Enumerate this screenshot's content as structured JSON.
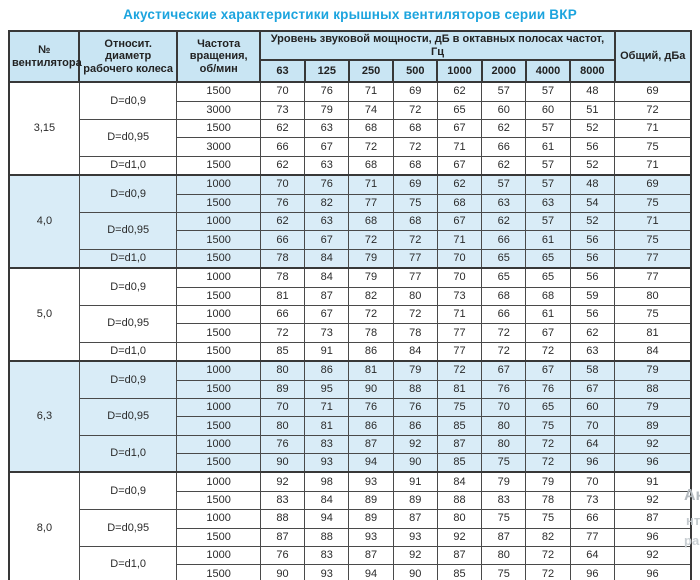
{
  "title": "Акустические характеристики крышных вентиляторов серии ВКР",
  "colors": {
    "title_blue": "#1ca4de",
    "header_bg": "#c9e5f3",
    "shaded_row_bg": "#d9ecf7",
    "border_dark": "#383838",
    "text": "#2a2a2a"
  },
  "watermark": {
    "line1": "Ак",
    "line2": "нт",
    "line3": "ра"
  },
  "table": {
    "headers": {
      "fan": "№ вентилятора",
      "diameter": "Относит. диаметр рабочего колеса",
      "rpm": "Частота вращения, об/мин",
      "spl_group": "Уровень звуковой мощности, дБ в октавных полосах частот, Гц",
      "frequencies": [
        "63",
        "125",
        "250",
        "500",
        "1000",
        "2000",
        "4000",
        "8000"
      ],
      "total": "Общий, дБа"
    },
    "sections": [
      {
        "fan": "3,15",
        "shaded": false,
        "groups": [
          {
            "diameter": "D=d0,9",
            "rows": [
              {
                "rpm": "1500",
                "levels": [
                  70,
                  76,
                  71,
                  69,
                  62,
                  57,
                  57,
                  48
                ],
                "total": 69
              },
              {
                "rpm": "3000",
                "levels": [
                  73,
                  79,
                  74,
                  72,
                  65,
                  60,
                  60,
                  51
                ],
                "total": 72
              }
            ]
          },
          {
            "diameter": "D=d0,95",
            "rows": [
              {
                "rpm": "1500",
                "levels": [
                  62,
                  63,
                  68,
                  68,
                  67,
                  62,
                  57,
                  52
                ],
                "total": 71
              },
              {
                "rpm": "3000",
                "levels": [
                  66,
                  67,
                  72,
                  72,
                  71,
                  66,
                  61,
                  56
                ],
                "total": 75
              }
            ]
          },
          {
            "diameter": "D=d1,0",
            "rows": [
              {
                "rpm": "1500",
                "levels": [
                  62,
                  63,
                  68,
                  68,
                  67,
                  62,
                  57,
                  52
                ],
                "total": 71
              }
            ]
          }
        ]
      },
      {
        "fan": "4,0",
        "shaded": true,
        "groups": [
          {
            "diameter": "D=d0,9",
            "rows": [
              {
                "rpm": "1000",
                "levels": [
                  70,
                  76,
                  71,
                  69,
                  62,
                  57,
                  57,
                  48
                ],
                "total": 69
              },
              {
                "rpm": "1500",
                "levels": [
                  76,
                  82,
                  77,
                  75,
                  68,
                  63,
                  63,
                  54
                ],
                "total": 75
              }
            ]
          },
          {
            "diameter": "D=d0,95",
            "rows": [
              {
                "rpm": "1000",
                "levels": [
                  62,
                  63,
                  68,
                  68,
                  67,
                  62,
                  57,
                  52
                ],
                "total": 71
              },
              {
                "rpm": "1500",
                "levels": [
                  66,
                  67,
                  72,
                  72,
                  71,
                  66,
                  61,
                  56
                ],
                "total": 75
              }
            ]
          },
          {
            "diameter": "D=d1,0",
            "rows": [
              {
                "rpm": "1500",
                "levels": [
                  78,
                  84,
                  79,
                  77,
                  70,
                  65,
                  65,
                  56
                ],
                "total": 77
              }
            ]
          }
        ]
      },
      {
        "fan": "5,0",
        "shaded": false,
        "groups": [
          {
            "diameter": "D=d0,9",
            "rows": [
              {
                "rpm": "1000",
                "levels": [
                  78,
                  84,
                  79,
                  77,
                  70,
                  65,
                  65,
                  56
                ],
                "total": 77
              },
              {
                "rpm": "1500",
                "levels": [
                  81,
                  87,
                  82,
                  80,
                  73,
                  68,
                  68,
                  59
                ],
                "total": 80
              }
            ]
          },
          {
            "diameter": "D=d0,95",
            "rows": [
              {
                "rpm": "1000",
                "levels": [
                  66,
                  67,
                  72,
                  72,
                  71,
                  66,
                  61,
                  56
                ],
                "total": 75
              },
              {
                "rpm": "1500",
                "levels": [
                  72,
                  73,
                  78,
                  78,
                  77,
                  72,
                  67,
                  62
                ],
                "total": 81
              }
            ]
          },
          {
            "diameter": "D=d1,0",
            "rows": [
              {
                "rpm": "1500",
                "levels": [
                  85,
                  91,
                  86,
                  84,
                  77,
                  72,
                  72,
                  63
                ],
                "total": 84
              }
            ]
          }
        ]
      },
      {
        "fan": "6,3",
        "shaded": true,
        "groups": [
          {
            "diameter": "D=d0,9",
            "rows": [
              {
                "rpm": "1000",
                "levels": [
                  80,
                  86,
                  81,
                  79,
                  72,
                  67,
                  67,
                  58
                ],
                "total": 79
              },
              {
                "rpm": "1500",
                "levels": [
                  89,
                  95,
                  90,
                  88,
                  81,
                  76,
                  76,
                  67
                ],
                "total": 88
              }
            ]
          },
          {
            "diameter": "D=d0,95",
            "rows": [
              {
                "rpm": "1000",
                "levels": [
                  70,
                  71,
                  76,
                  76,
                  75,
                  70,
                  65,
                  60
                ],
                "total": 79
              },
              {
                "rpm": "1500",
                "levels": [
                  80,
                  81,
                  86,
                  86,
                  85,
                  80,
                  75,
                  70
                ],
                "total": 89
              }
            ]
          },
          {
            "diameter": "D=d1,0",
            "rows": [
              {
                "rpm": "1000",
                "levels": [
                  76,
                  83,
                  87,
                  92,
                  87,
                  80,
                  72,
                  64
                ],
                "total": 92
              },
              {
                "rpm": "1500",
                "levels": [
                  90,
                  93,
                  94,
                  90,
                  85,
                  75,
                  72,
                  96
                ],
                "total": 96
              }
            ]
          }
        ]
      },
      {
        "fan": "8,0",
        "shaded": false,
        "groups": [
          {
            "diameter": "D=d0,9",
            "rows": [
              {
                "rpm": "1000",
                "levels": [
                  92,
                  98,
                  93,
                  91,
                  84,
                  79,
                  79,
                  70
                ],
                "total": 91
              },
              {
                "rpm": "1500",
                "levels": [
                  83,
                  84,
                  89,
                  89,
                  88,
                  83,
                  78,
                  73
                ],
                "total": 92
              }
            ]
          },
          {
            "diameter": "D=d0,95",
            "rows": [
              {
                "rpm": "1000",
                "levels": [
                  88,
                  94,
                  89,
                  87,
                  80,
                  75,
                  75,
                  66
                ],
                "total": 87
              },
              {
                "rpm": "1500",
                "levels": [
                  87,
                  88,
                  93,
                  93,
                  92,
                  87,
                  82,
                  77
                ],
                "total": 96
              }
            ]
          },
          {
            "diameter": "D=d1,0",
            "rows": [
              {
                "rpm": "1000",
                "levels": [
                  76,
                  83,
                  87,
                  92,
                  87,
                  80,
                  72,
                  64
                ],
                "total": 92
              },
              {
                "rpm": "1500",
                "levels": [
                  90,
                  93,
                  94,
                  90,
                  85,
                  75,
                  72,
                  96
                ],
                "total": 96
              }
            ]
          }
        ]
      }
    ]
  }
}
